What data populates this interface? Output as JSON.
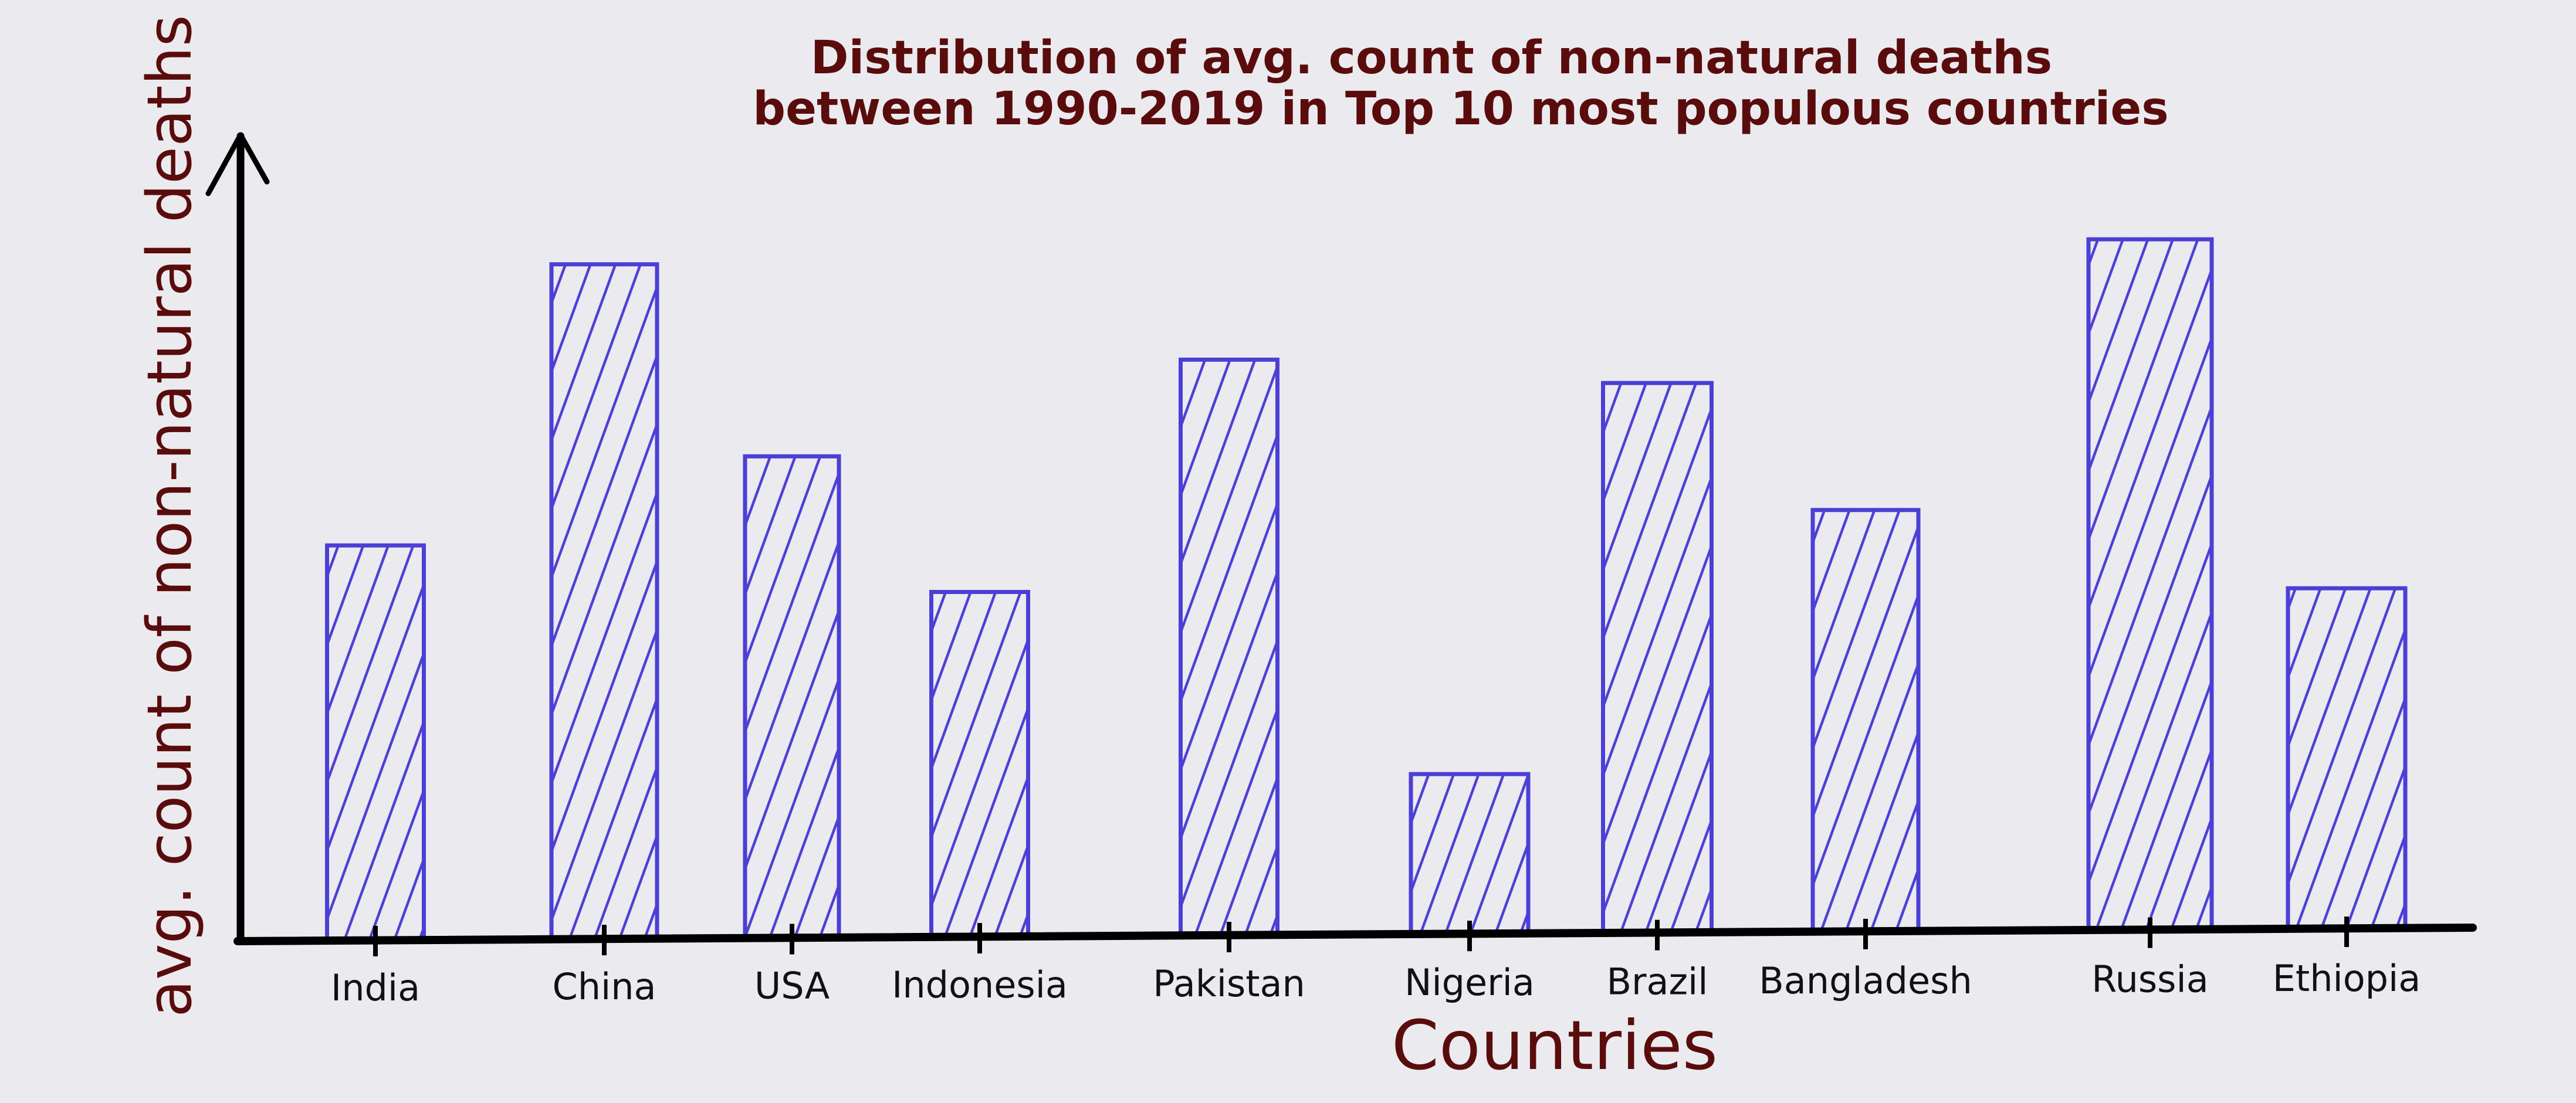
{
  "chart_data": {
    "type": "bar",
    "title": "Distribution of avg. count of non-natural deaths between 1990-2019 in Top 10 most populous countries",
    "title_lines": [
      "Distribution of avg. count of non-natural deaths",
      "between 1990-2019 in Top 10 most populous countries"
    ],
    "xlabel": "Countries",
    "ylabel": "avg. count of non-natural deaths",
    "categories": [
      "India",
      "China",
      "USA",
      "Indonesia",
      "Pakistan",
      "Nigeria",
      "Brazil",
      "Bangladesh",
      "Russia",
      "Ethiopia"
    ],
    "values": [
      49,
      84,
      60,
      43,
      72,
      20,
      69,
      53,
      87,
      43
    ],
    "ylim": [
      0,
      100
    ],
    "value_scale": "relative (no tick labels printed)",
    "grid": false,
    "legend": "none",
    "bar_fill": "diagonal hatching",
    "colors": {
      "bar": "#4b3fd6",
      "axis": "#000000",
      "title": "#5a0c0c",
      "axis_label": "#5a0c0c",
      "category_label": "#111111",
      "background": "#ebebef"
    }
  }
}
